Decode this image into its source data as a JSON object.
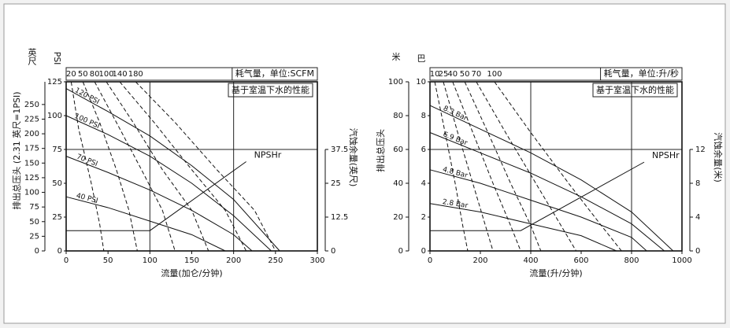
{
  "chart_data": [
    {
      "type": "line",
      "title": "耗气量，单位:SCFM",
      "note": "基于室温下水的性能",
      "x_label": "流量(加仑/分钟)",
      "y_label": "排出总压头 (2.31 英尺=1PSI)",
      "y_unit": "PSI",
      "y3_unit": "英尺",
      "y2_label": "汽蚀余量(英尺)",
      "xlim": [
        0,
        300
      ],
      "xticks": [
        0,
        50,
        100,
        150,
        200,
        250,
        300
      ],
      "ylim": [
        0,
        125
      ],
      "yticks": [
        0,
        25,
        50,
        75,
        100,
        125
      ],
      "y3lim": [
        0,
        288.75
      ],
      "y3ticks": [
        0,
        25,
        50,
        75,
        100,
        125,
        150,
        175,
        200,
        225,
        250
      ],
      "y2lim": [
        0,
        62.5
      ],
      "y2ticks": [
        0,
        12.5,
        25,
        37.5
      ],
      "grid_x": [
        100,
        200
      ],
      "grid_y": [
        75
      ],
      "series": [
        {
          "name": "120 PSI",
          "color": "#111111",
          "x": [
            0,
            50,
            100,
            150,
            200,
            255
          ],
          "values": [
            120,
            103,
            85,
            63,
            38,
            0
          ]
        },
        {
          "name": "100 PSI",
          "color": "#111111",
          "x": [
            0,
            50,
            100,
            150,
            200,
            245
          ],
          "values": [
            100,
            86,
            70,
            50,
            26,
            0
          ]
        },
        {
          "name": "70 PSI",
          "color": "#111111",
          "x": [
            0,
            50,
            100,
            150,
            200,
            222
          ],
          "values": [
            70,
            58,
            45,
            30,
            12,
            0
          ]
        },
        {
          "name": "40 PSI",
          "color": "#111111",
          "x": [
            0,
            50,
            100,
            150,
            190
          ],
          "values": [
            40,
            32,
            22,
            12,
            0
          ]
        },
        {
          "name": "NPSHr",
          "color": "#111111",
          "axis": "y2",
          "x": [
            0,
            100,
            215
          ],
          "values": [
            7.5,
            7.5,
            33
          ]
        }
      ],
      "air_series": [
        {
          "name": "20",
          "color": "#111111",
          "x": [
            6,
            15,
            30,
            40,
            45
          ],
          "values": [
            125,
            90,
            50,
            20,
            0
          ]
        },
        {
          "name": "50",
          "color": "#111111",
          "x": [
            20,
            40,
            60,
            75,
            85
          ],
          "values": [
            125,
            95,
            60,
            30,
            0
          ]
        },
        {
          "name": "80",
          "color": "#111111",
          "x": [
            34,
            60,
            90,
            115,
            130
          ],
          "values": [
            125,
            95,
            60,
            30,
            0
          ]
        },
        {
          "name": "100",
          "color": "#111111",
          "x": [
            48,
            80,
            115,
            150,
            170
          ],
          "values": [
            125,
            95,
            60,
            30,
            0
          ]
        },
        {
          "name": "140",
          "color": "#111111",
          "x": [
            64,
            105,
            150,
            190,
            215
          ],
          "values": [
            125,
            95,
            60,
            30,
            0
          ]
        },
        {
          "name": "180",
          "color": "#111111",
          "x": [
            83,
            130,
            180,
            225,
            250
          ],
          "values": [
            125,
            95,
            60,
            30,
            0
          ]
        }
      ]
    },
    {
      "type": "line",
      "title": "耗气量，单位:升/秒",
      "note": "基于室温下水的性能",
      "x_label": "流量(升/分钟)",
      "y_label": "排出总压头",
      "y_unit": "巴",
      "y3_unit": "米",
      "y2_label": "汽蚀余量(米)",
      "xlim": [
        0,
        1000
      ],
      "xticks": [
        0,
        200,
        400,
        600,
        800,
        1000
      ],
      "ylim": [
        0,
        10
      ],
      "yticks": [
        0,
        2,
        4,
        6,
        8,
        10
      ],
      "y3lim": [
        0,
        100
      ],
      "y3ticks": [
        0,
        20,
        40,
        60,
        80,
        100
      ],
      "y2lim": [
        0,
        20
      ],
      "y2ticks": [
        0,
        4,
        8,
        12
      ],
      "grid_x": [
        400,
        800
      ],
      "grid_y": [
        6
      ],
      "series": [
        {
          "name": "8.3 Bar",
          "color": "#111111",
          "x": [
            0,
            200,
            400,
            600,
            800,
            965
          ],
          "values": [
            8.6,
            7.2,
            5.8,
            4.2,
            2.3,
            0
          ]
        },
        {
          "name": "6.9 Bar",
          "color": "#111111",
          "x": [
            0,
            200,
            400,
            600,
            800,
            930
          ],
          "values": [
            7.0,
            5.8,
            4.6,
            3.2,
            1.6,
            0
          ]
        },
        {
          "name": "4.8 Bar",
          "color": "#111111",
          "x": [
            0,
            200,
            400,
            600,
            800,
            860
          ],
          "values": [
            4.8,
            4.0,
            3.0,
            2.0,
            0.8,
            0
          ]
        },
        {
          "name": "2.8 Bar",
          "color": "#111111",
          "x": [
            0,
            200,
            400,
            600,
            740
          ],
          "values": [
            2.8,
            2.3,
            1.6,
            0.9,
            0
          ]
        },
        {
          "name": "NPSHr",
          "color": "#111111",
          "axis": "y2",
          "x": [
            0,
            360,
            850
          ],
          "values": [
            2.4,
            2.4,
            10.5
          ]
        }
      ],
      "air_series": [
        {
          "name": "10",
          "color": "#111111",
          "x": [
            19,
            60,
            100,
            130,
            150
          ],
          "values": [
            10,
            7,
            4,
            1.5,
            0
          ]
        },
        {
          "name": "25",
          "color": "#111111",
          "x": [
            53,
            110,
            170,
            220,
            250
          ],
          "values": [
            10,
            7,
            4,
            1.5,
            0
          ]
        },
        {
          "name": "40",
          "color": "#111111",
          "x": [
            90,
            170,
            250,
            320,
            360
          ],
          "values": [
            10,
            7,
            4,
            1.5,
            0
          ]
        },
        {
          "name": "50",
          "color": "#111111",
          "x": [
            138,
            230,
            320,
            400,
            440
          ],
          "values": [
            10,
            7,
            4,
            1.5,
            0
          ]
        },
        {
          "name": "70",
          "color": "#111111",
          "x": [
            184,
            300,
            420,
            520,
            580
          ],
          "values": [
            10,
            7,
            4,
            1.5,
            0
          ]
        },
        {
          "name": "100",
          "color": "#111111",
          "x": [
            256,
            400,
            550,
            680,
            760
          ],
          "values": [
            10,
            7,
            4,
            1.5,
            0
          ]
        }
      ]
    }
  ]
}
